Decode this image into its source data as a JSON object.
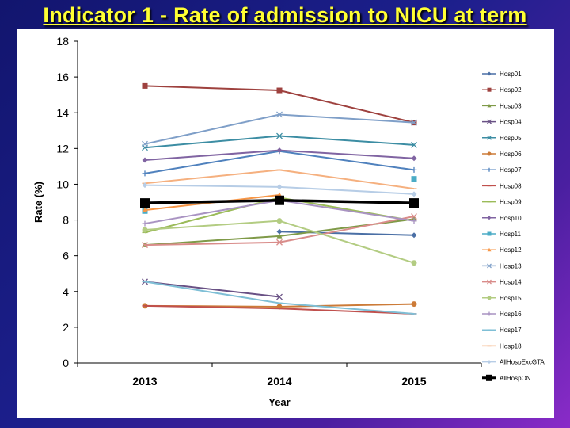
{
  "slide": {
    "title": "Indicator 1 - Rate of admission to NICU at term"
  },
  "chart_data": {
    "type": "line",
    "title": "",
    "xlabel": "Year",
    "ylabel": "Rate (%)",
    "categories": [
      "2013",
      "2014",
      "2015"
    ],
    "ylim": [
      0,
      18
    ],
    "yticks": [
      "0",
      "2",
      "4",
      "6",
      "8",
      "10",
      "12",
      "14",
      "16",
      "18"
    ],
    "grid": false,
    "legend": "right",
    "series": [
      {
        "name": "Hosp01",
        "color": "#4a6fa5",
        "marker": "diamond",
        "values": [
          null,
          7.35,
          7.15
        ]
      },
      {
        "name": "Hosp02",
        "color": "#9e413e",
        "marker": "square",
        "values": [
          15.5,
          15.25,
          13.45
        ]
      },
      {
        "name": "Hosp03",
        "color": "#7f9a48",
        "marker": "triangle",
        "values": [
          6.6,
          7.1,
          8.05
        ]
      },
      {
        "name": "Hosp04",
        "color": "#695185",
        "marker": "x",
        "values": [
          4.55,
          3.7,
          null
        ]
      },
      {
        "name": "Hosp05",
        "color": "#3c8da3",
        "marker": "x",
        "values": [
          12.05,
          12.7,
          12.2
        ]
      },
      {
        "name": "Hosp06",
        "color": "#cc7b38",
        "marker": "circle",
        "values": [
          3.2,
          3.15,
          3.3
        ]
      },
      {
        "name": "Hosp07",
        "color": "#4f81bd",
        "marker": "plus",
        "values": [
          10.6,
          11.85,
          10.8
        ]
      },
      {
        "name": "Hosp08",
        "color": "#c0504d",
        "marker": "dash",
        "values": [
          3.2,
          3.05,
          2.75
        ]
      },
      {
        "name": "Hosp09",
        "color": "#9bbb59",
        "marker": "dash",
        "values": [
          7.3,
          9.25,
          7.95
        ]
      },
      {
        "name": "Hosp10",
        "color": "#8064a2",
        "marker": "diamond",
        "values": [
          11.35,
          11.9,
          11.45
        ]
      },
      {
        "name": "Hosp11",
        "color": "#4bacc6",
        "marker": "square",
        "values": [
          8.5,
          null,
          10.3
        ]
      },
      {
        "name": "Hosp12",
        "color": "#f79646",
        "marker": "triangle",
        "values": [
          8.55,
          9.4,
          null
        ]
      },
      {
        "name": "Hosp13",
        "color": "#7f9fc8",
        "marker": "x",
        "values": [
          12.25,
          13.9,
          13.45
        ]
      },
      {
        "name": "Hosp14",
        "color": "#d98c8a",
        "marker": "x",
        "values": [
          6.6,
          6.75,
          8.2
        ]
      },
      {
        "name": "Hosp15",
        "color": "#b3cc82",
        "marker": "circle",
        "values": [
          7.45,
          7.95,
          5.6
        ]
      },
      {
        "name": "Hosp16",
        "color": "#a993c2",
        "marker": "plus",
        "values": [
          7.8,
          9.1,
          7.95
        ]
      },
      {
        "name": "Hosp17",
        "color": "#7fbfd6",
        "marker": "dash",
        "values": [
          4.55,
          3.35,
          2.75
        ]
      },
      {
        "name": "Hosp18",
        "color": "#f5b07f",
        "marker": "dash",
        "values": [
          10.05,
          10.8,
          9.75
        ]
      },
      {
        "name": "AllHospExcGTA",
        "color": "#b7cde6",
        "marker": "diamond",
        "values": [
          9.95,
          9.85,
          9.45
        ]
      },
      {
        "name": "AllHospON",
        "color": "#000000",
        "marker": "square",
        "bold": true,
        "values": [
          8.95,
          9.1,
          8.95
        ]
      }
    ]
  }
}
